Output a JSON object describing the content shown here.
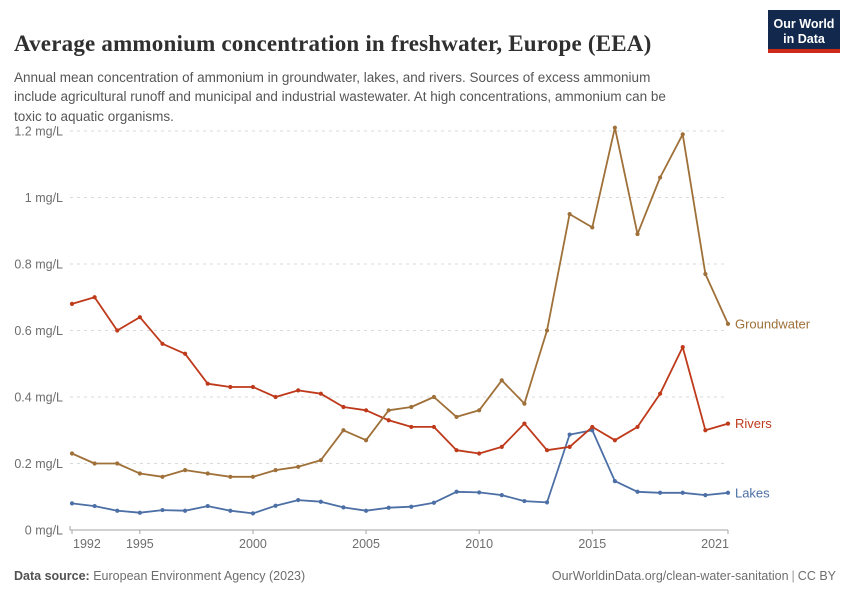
{
  "header": {
    "title": "Average ammonium concentration in freshwater, Europe (EEA)",
    "subtitle": "Annual mean concentration of ammonium in groundwater, lakes, and rivers. Sources of excess ammonium\ninclude agricultural runoff and municipal and industrial wastewater. At high concentrations, ammonium can be\ntoxic to aquatic organisms."
  },
  "logo": {
    "line1": "Our World",
    "line2": "in Data",
    "bg_color": "#12294D",
    "stripe_color": "#CE2A19"
  },
  "chart_data": {
    "type": "line",
    "title": "Average ammonium concentration in freshwater, Europe (EEA)",
    "unit": "mg/L",
    "x": [
      1992,
      1993,
      1994,
      1995,
      1996,
      1997,
      1998,
      1999,
      2000,
      2001,
      2002,
      2003,
      2004,
      2005,
      2006,
      2007,
      2008,
      2009,
      2010,
      2011,
      2012,
      2013,
      2014,
      2015,
      2016,
      2017,
      2018,
      2019,
      2020,
      2021
    ],
    "xticks": [
      1992,
      1995,
      2000,
      2005,
      2010,
      2015,
      2021
    ],
    "ylim": [
      0,
      1.2
    ],
    "yticks": [
      0,
      0.2,
      0.4,
      0.6,
      0.8,
      1.0,
      1.2
    ],
    "ytick_labels": [
      "0 mg/L",
      "0.2 mg/L",
      "0.4 mg/L",
      "0.6 mg/L",
      "0.8 mg/L",
      "1 mg/L",
      "1.2 mg/L"
    ],
    "grid": "horizontal-dashed",
    "legend_position": "end-of-line-labels",
    "series": [
      {
        "name": "Groundwater",
        "color": "#9F7038",
        "values": [
          0.23,
          0.2,
          0.2,
          0.17,
          0.16,
          0.18,
          0.17,
          0.16,
          0.16,
          0.18,
          0.19,
          0.21,
          0.3,
          0.27,
          0.36,
          0.37,
          0.4,
          0.34,
          0.36,
          0.45,
          0.38,
          0.6,
          0.95,
          0.91,
          1.21,
          0.89,
          1.06,
          1.19,
          0.77,
          0.62
        ]
      },
      {
        "name": "Rivers",
        "color": "#BE3A1B",
        "values": [
          0.68,
          0.7,
          0.6,
          0.64,
          0.56,
          0.53,
          0.44,
          0.43,
          0.43,
          0.4,
          0.42,
          0.41,
          0.37,
          0.36,
          0.33,
          0.31,
          0.31,
          0.24,
          0.23,
          0.25,
          0.32,
          0.24,
          0.25,
          0.31,
          0.27,
          0.31,
          0.41,
          0.55,
          0.3,
          0.32
        ]
      },
      {
        "name": "Lakes",
        "color": "#4C6FA5",
        "values": [
          0.08,
          0.072,
          0.058,
          0.052,
          0.06,
          0.058,
          0.072,
          0.058,
          0.05,
          0.073,
          0.09,
          0.085,
          0.068,
          0.058,
          0.067,
          0.07,
          0.082,
          0.115,
          0.113,
          0.105,
          0.087,
          0.083,
          0.287,
          0.3,
          0.147,
          0.115,
          0.112,
          0.112,
          0.105,
          0.112
        ]
      }
    ]
  },
  "footer": {
    "source_label": "Data source:",
    "source": "European Environment Agency (2023)",
    "url": "OurWorldinData.org/clean-water-sanitation",
    "separator": "|",
    "license": "CC BY"
  }
}
